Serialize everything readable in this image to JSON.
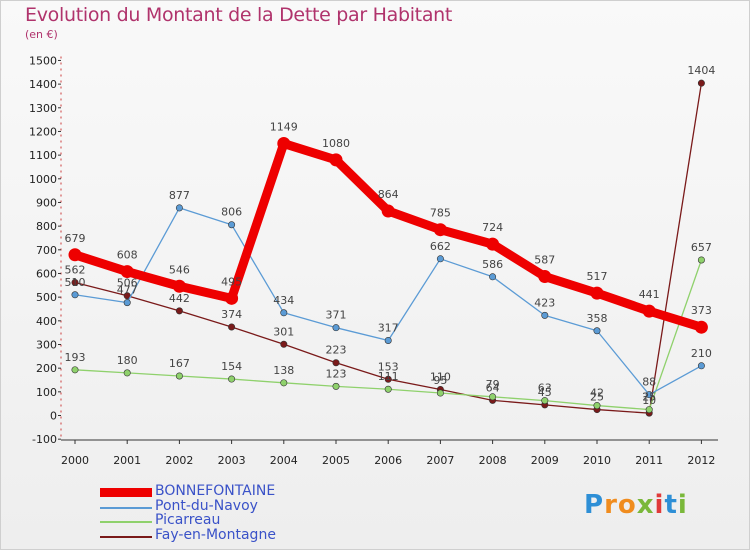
{
  "header": {
    "title": "Evolution du Montant de la Dette par Habitant",
    "unit": "(en €)"
  },
  "logo": {
    "text": "Proxiti",
    "letters": [
      "P",
      "r",
      "o",
      "x",
      "i",
      "t",
      "i"
    ],
    "colors": [
      "#2e8fd6",
      "#f08c1e",
      "#f08c1e",
      "#7ab83a",
      "#e03a3a",
      "#2e8fd6",
      "#7ab83a"
    ]
  },
  "chart_data": {
    "type": "line",
    "title": "Evolution du Montant de la Dette par Habitant",
    "ylabel": "(en €)",
    "xlabel": "",
    "x": [
      "2000",
      "2001",
      "2002",
      "2003",
      "2004",
      "2005",
      "2006",
      "2007",
      "2008",
      "2009",
      "2010",
      "2011",
      "2012"
    ],
    "ylim": [
      -100,
      1500
    ],
    "yticks": [
      -100,
      0,
      100,
      200,
      300,
      400,
      500,
      600,
      700,
      800,
      900,
      1000,
      1100,
      1200,
      1300,
      1400,
      1500
    ],
    "grid": false,
    "legend": "bottom-left",
    "series": [
      {
        "name": "BONNEFONTAINE",
        "color": "#ee0000",
        "width": 9,
        "values": [
          679,
          608,
          546,
          495,
          1149,
          1080,
          864,
          785,
          724,
          587,
          517,
          441,
          373
        ],
        "labels": [
          "679",
          "608",
          "546",
          "495",
          "1149",
          "1080",
          "864",
          "785",
          "724",
          "587",
          "517",
          "441",
          "373"
        ]
      },
      {
        "name": "Pont-du-Navoy",
        "color": "#5b9bd5",
        "width": 1.3,
        "values": [
          510,
          477,
          877,
          806,
          434,
          371,
          317,
          662,
          586,
          423,
          358,
          88,
          210
        ],
        "labels": [
          "510",
          "477",
          "877",
          "806",
          "434",
          "371",
          "317",
          "662",
          "586",
          "423",
          "358",
          "88",
          "210"
        ]
      },
      {
        "name": "Picarreau",
        "color": "#8fd16c",
        "width": 1.3,
        "values": [
          193,
          180,
          167,
          154,
          138,
          123,
          111,
          95,
          79,
          63,
          42,
          25,
          657
        ],
        "labels": [
          "193",
          "180",
          "167",
          "154",
          "138",
          "123",
          "111",
          "95",
          "79",
          "63",
          "42",
          "25",
          "657"
        ]
      },
      {
        "name": "Fay-en-Montagne",
        "color": "#7a1a1a",
        "width": 1.3,
        "values": [
          562,
          506,
          442,
          374,
          301,
          223,
          153,
          110,
          64,
          45,
          25,
          10,
          1404
        ],
        "labels": [
          "562",
          "506",
          "442",
          "374",
          "301",
          "223",
          "153",
          "110",
          "64",
          "45",
          "25",
          "10",
          "1404"
        ]
      }
    ]
  }
}
